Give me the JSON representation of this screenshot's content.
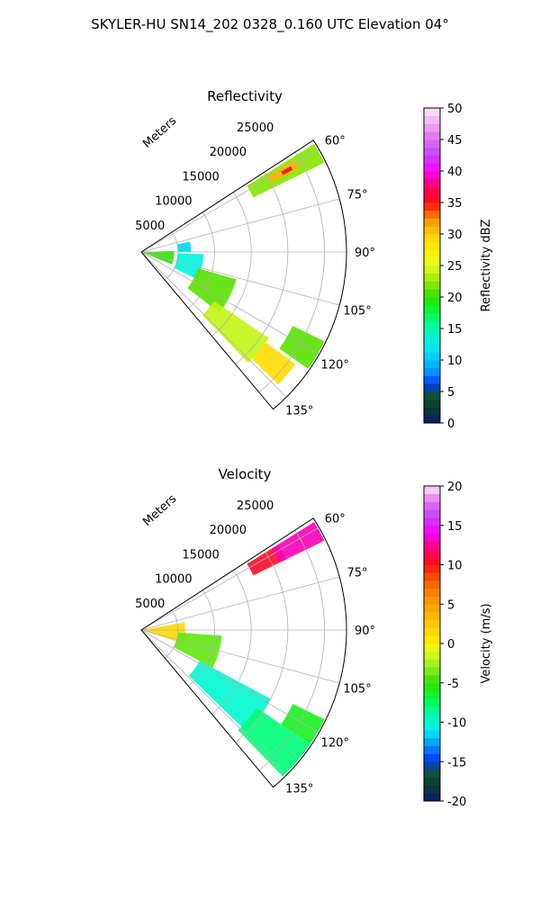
{
  "figure_title": "SKYLER-HU  SN14_202  0328_0.160 UTC Elevation 04°",
  "range_unit_label": "Meters",
  "chart_data": [
    {
      "type": "heatmap",
      "projection": "polar-sector",
      "title": "Reflectivity",
      "range_ticks": [
        5000,
        10000,
        15000,
        20000,
        25000
      ],
      "range_tick_labels": [
        "5000",
        "10000",
        "15000",
        "20000",
        "25000"
      ],
      "angle_ticks": [
        60,
        75,
        90,
        105,
        120,
        135
      ],
      "angle_tick_labels": [
        "60°",
        "75°",
        "90°",
        "105°",
        "120°",
        "135°"
      ],
      "grid": true,
      "colorbar": {
        "label": "Reflectivity dBZ",
        "vmin": 0,
        "vmax": 50,
        "ticks": [
          0,
          5,
          10,
          15,
          20,
          25,
          30,
          35,
          40,
          45,
          50
        ],
        "tick_labels": [
          "0",
          "5",
          "10",
          "15",
          "20",
          "25",
          "30",
          "35",
          "40",
          "45",
          "50"
        ],
        "stops": [
          {
            "v": 0,
            "c": "#0a1a6e"
          },
          {
            "v": 2.5,
            "c": "#0b3d2e"
          },
          {
            "v": 5,
            "c": "#0f5a3a"
          },
          {
            "v": 6,
            "c": "#0030ff"
          },
          {
            "v": 8,
            "c": "#0090ff"
          },
          {
            "v": 10,
            "c": "#00c8ff"
          },
          {
            "v": 12.5,
            "c": "#00f0e8"
          },
          {
            "v": 15,
            "c": "#00ffb0"
          },
          {
            "v": 17.5,
            "c": "#00ff40"
          },
          {
            "v": 20,
            "c": "#30e000"
          },
          {
            "v": 22.5,
            "c": "#9ae600"
          },
          {
            "v": 25,
            "c": "#dfff20"
          },
          {
            "v": 27.5,
            "c": "#ffee00"
          },
          {
            "v": 30,
            "c": "#ffd000"
          },
          {
            "v": 32.5,
            "c": "#ff8c00"
          },
          {
            "v": 35,
            "c": "#ff1010"
          },
          {
            "v": 37.5,
            "c": "#ff0060"
          },
          {
            "v": 40,
            "c": "#ff00ff"
          },
          {
            "v": 42.5,
            "c": "#c840ff"
          },
          {
            "v": 45,
            "c": "#e070f0"
          },
          {
            "v": 47.5,
            "c": "#f0a8f0"
          },
          {
            "v": 50,
            "c": "#ffe8ff"
          }
        ]
      },
      "echo_regions": [
        {
          "r": [
            17000,
            27800
          ],
          "az": [
            58,
            64
          ],
          "value": 22
        },
        {
          "r": [
            20000,
            24500
          ],
          "az": [
            59,
            62
          ],
          "value": 31
        },
        {
          "r": [
            22000,
            23500
          ],
          "az": [
            60,
            61.5
          ],
          "value": 35
        },
        {
          "r": [
            200,
            4500
          ],
          "az": [
            88,
            112
          ],
          "value": 20
        },
        {
          "r": [
            5000,
            6800
          ],
          "az": [
            78,
            90
          ],
          "value": 11
        },
        {
          "r": [
            5000,
            8500
          ],
          "az": [
            92,
            116
          ],
          "value": 13
        },
        {
          "r": [
            8000,
            13500
          ],
          "az": [
            106,
            128
          ],
          "value": 21
        },
        {
          "r": [
            12000,
            21000
          ],
          "az": [
            124,
            136
          ],
          "value": 24
        },
        {
          "r": [
            21000,
            26000
          ],
          "az": [
            126,
            134
          ],
          "value": 29
        },
        {
          "r": [
            23000,
            27800
          ],
          "az": [
            116,
            125
          ],
          "value": 21
        }
      ]
    },
    {
      "type": "heatmap",
      "projection": "polar-sector",
      "title": "Velocity",
      "range_ticks": [
        5000,
        10000,
        15000,
        20000,
        25000
      ],
      "range_tick_labels": [
        "5000",
        "10000",
        "15000",
        "20000",
        "25000"
      ],
      "angle_ticks": [
        60,
        75,
        90,
        105,
        120,
        135
      ],
      "angle_tick_labels": [
        "60°",
        "75°",
        "90°",
        "105°",
        "120°",
        "135°"
      ],
      "grid": true,
      "colorbar": {
        "label": "Velocity (m/s)",
        "vmin": -20,
        "vmax": 20,
        "ticks": [
          -20,
          -15,
          -10,
          -5,
          0,
          5,
          10,
          15,
          20
        ],
        "tick_labels": [
          "-20",
          "-15",
          "-10",
          "-5",
          "0",
          "5",
          "10",
          "15",
          "20"
        ],
        "stops": [
          {
            "v": -20,
            "c": "#0a1a6e"
          },
          {
            "v": -18,
            "c": "#0b3d2e"
          },
          {
            "v": -16,
            "c": "#0f5a3a"
          },
          {
            "v": -15,
            "c": "#0030ff"
          },
          {
            "v": -13,
            "c": "#0090ff"
          },
          {
            "v": -11,
            "c": "#00f0f0"
          },
          {
            "v": -9,
            "c": "#00ffb0"
          },
          {
            "v": -7,
            "c": "#00ff40"
          },
          {
            "v": -5,
            "c": "#30e000"
          },
          {
            "v": -3,
            "c": "#90ee20"
          },
          {
            "v": -1,
            "c": "#dfff20"
          },
          {
            "v": 0,
            "c": "#ffee00"
          },
          {
            "v": 2,
            "c": "#ffd000"
          },
          {
            "v": 5,
            "c": "#ffa000"
          },
          {
            "v": 8,
            "c": "#ff6000"
          },
          {
            "v": 10,
            "c": "#ff1010"
          },
          {
            "v": 12,
            "c": "#ff0070"
          },
          {
            "v": 14,
            "c": "#ff00ff"
          },
          {
            "v": 16,
            "c": "#c840ff"
          },
          {
            "v": 18,
            "c": "#e070f0"
          },
          {
            "v": 20,
            "c": "#ffe8ff"
          }
        ]
      },
      "echo_regions": [
        {
          "r": [
            17000,
            22000
          ],
          "az": [
            58,
            64
          ],
          "value": 10.5
        },
        {
          "r": [
            21000,
            27800
          ],
          "az": [
            58,
            64
          ],
          "value": 13
        },
        {
          "r": [
            200,
            6000
          ],
          "az": [
            80,
            108
          ],
          "value": 1.5
        },
        {
          "r": [
            5000,
            11000
          ],
          "az": [
            94,
            118
          ],
          "value": -4
        },
        {
          "r": [
            9000,
            20000
          ],
          "az": [
            118,
            134
          ],
          "value": -10
        },
        {
          "r": [
            19000,
            27800
          ],
          "az": [
            124,
            136
          ],
          "value": -8
        },
        {
          "r": [
            23000,
            27800
          ],
          "az": [
            116,
            124
          ],
          "value": -6
        }
      ]
    }
  ]
}
